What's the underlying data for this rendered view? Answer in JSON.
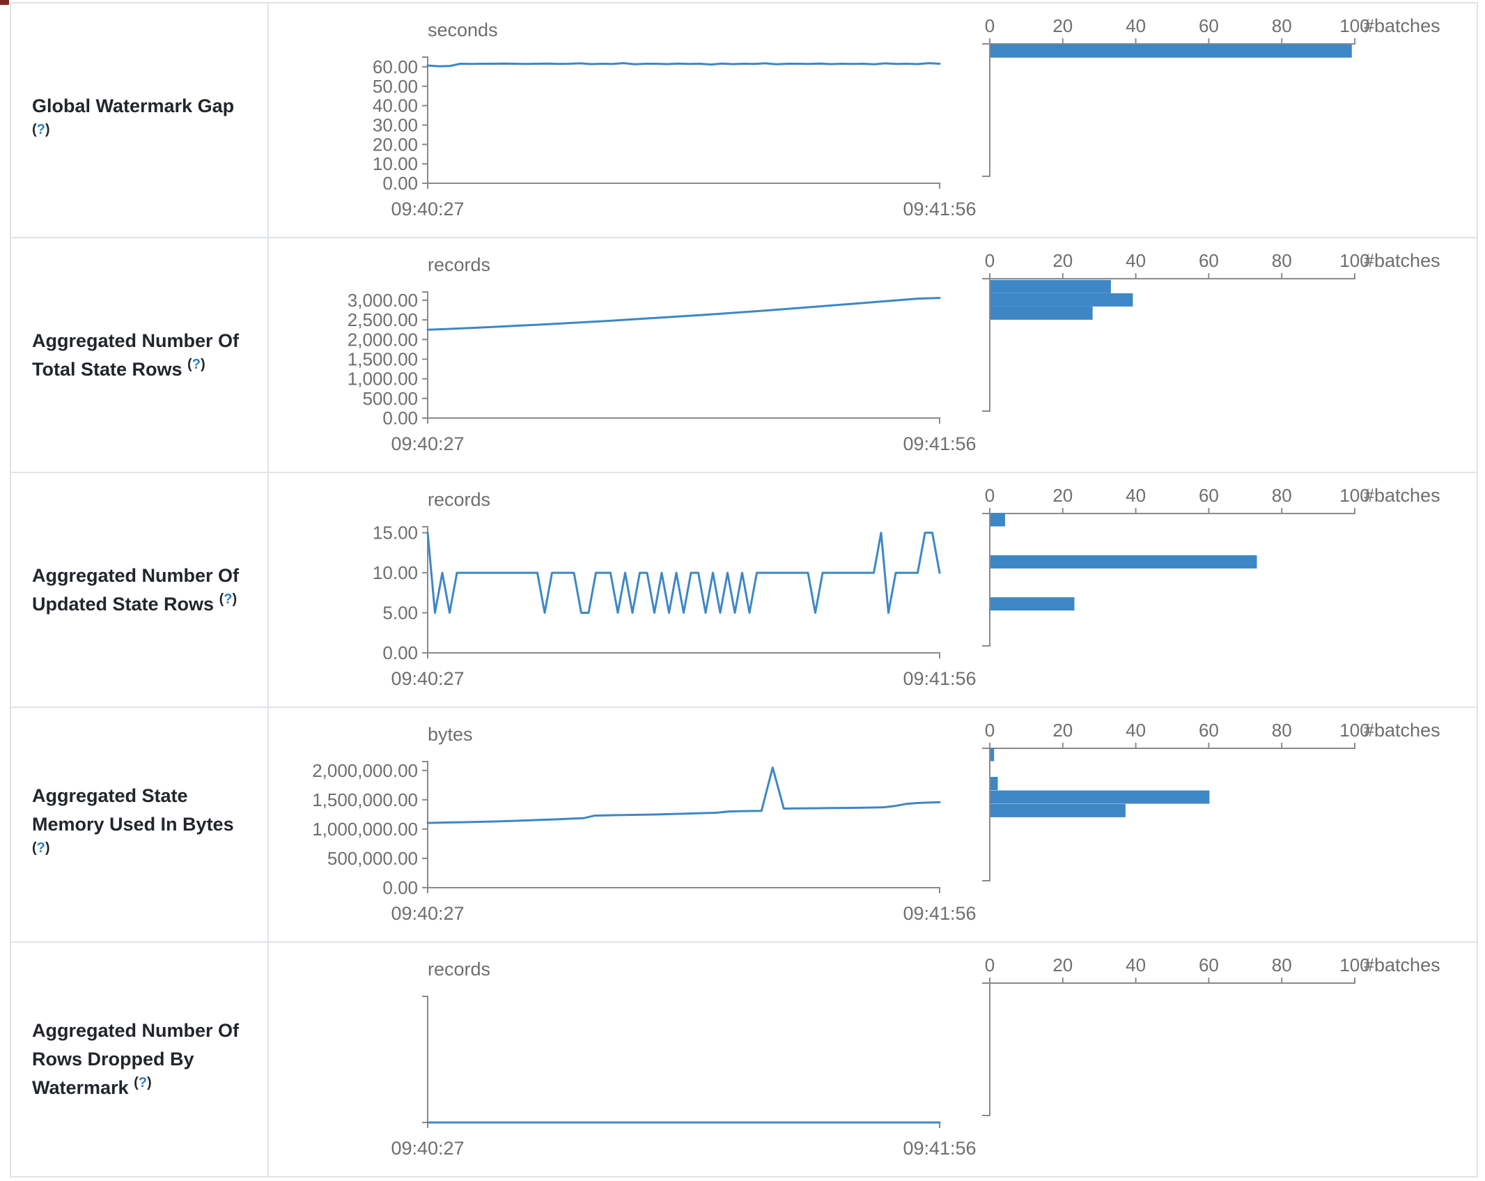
{
  "colors": {
    "accent_blue": "#3d87c6",
    "axis_gray": "#8a8a8a",
    "tick_text_gray": "#6e6e6e",
    "label_dark": "#22262b",
    "help_blue": "#2f7dbe",
    "border_gray": "#dfe3e8"
  },
  "help": {
    "open": "(",
    "q": "?",
    "close": ")"
  },
  "axis": {
    "start": "09:40:27",
    "end": "09:41:56",
    "batches": "#batches",
    "batch_ticks": [
      "0",
      "20",
      "40",
      "60",
      "80",
      "100"
    ],
    "batch_tick_values": [
      0,
      20,
      40,
      60,
      80,
      100
    ]
  },
  "rows": [
    {
      "id": "global-watermark-gap",
      "label": "Global Watermark Gap",
      "unit": "seconds",
      "type": "line+histogram",
      "y_ticks": [
        {
          "v": 60,
          "t": "60.00"
        },
        {
          "v": 50,
          "t": "50.00"
        },
        {
          "v": 40,
          "t": "40.00"
        },
        {
          "v": 30,
          "t": "30.00"
        },
        {
          "v": 20,
          "t": "20.00"
        },
        {
          "v": 10,
          "t": "10.00"
        },
        {
          "v": 0,
          "t": "0.00"
        }
      ],
      "series": [
        60.7,
        60.3,
        60.4,
        61.6,
        61.5,
        61.6,
        61.6,
        61.7,
        61.6,
        61.5,
        61.6,
        61.7,
        61.5,
        61.6,
        61.8,
        61.4,
        61.6,
        61.5,
        61.9,
        61.3,
        61.6,
        61.6,
        61.4,
        61.7,
        61.5,
        61.6,
        61.2,
        61.7,
        61.4,
        61.6,
        61.5,
        61.8,
        61.3,
        61.6,
        61.6,
        61.5,
        61.7,
        61.4,
        61.6,
        61.5,
        61.6,
        61.3,
        61.8,
        61.5,
        61.6,
        61.4,
        61.9,
        61.6
      ],
      "histogram": [
        {
          "v": 61.5,
          "count": 99
        }
      ]
    },
    {
      "id": "aggregated-number-of-total-state-rows",
      "label": "Aggregated Number Of Total State Rows",
      "unit": "records",
      "type": "line+histogram",
      "y_ticks": [
        {
          "v": 3000,
          "t": "3,000.00"
        },
        {
          "v": 2500,
          "t": "2,500.00"
        },
        {
          "v": 2000,
          "t": "2,000.00"
        },
        {
          "v": 1500,
          "t": "1,500.00"
        },
        {
          "v": 1000,
          "t": "1,000.00"
        },
        {
          "v": 500,
          "t": "500.00"
        },
        {
          "v": 0,
          "t": "0.00"
        }
      ],
      "series": [
        2248,
        2270,
        2295,
        2322,
        2350,
        2378,
        2408,
        2440,
        2472,
        2505,
        2540,
        2575,
        2612,
        2650,
        2690,
        2730,
        2772,
        2815,
        2860,
        2905,
        2950,
        2995,
        3040,
        3058
      ],
      "histogram": [
        {
          "v": 3020,
          "count": 33
        },
        {
          "v": 2698,
          "count": 39
        },
        {
          "v": 2376,
          "count": 28
        }
      ]
    },
    {
      "id": "aggregated-number-of-updated-state-rows",
      "label": "Aggregated Number Of Updated State Rows",
      "unit": "records",
      "type": "line+histogram",
      "y_ticks": [
        {
          "v": 15,
          "t": "15.00"
        },
        {
          "v": 10,
          "t": "10.00"
        },
        {
          "v": 5,
          "t": "5.00"
        },
        {
          "v": 0,
          "t": "0.00"
        }
      ],
      "series": [
        15,
        5,
        10,
        5,
        10,
        10,
        10,
        10,
        10,
        10,
        10,
        10,
        10,
        10,
        10,
        10,
        5,
        10,
        10,
        10,
        10,
        5,
        5,
        10,
        10,
        10,
        5,
        10,
        5,
        10,
        10,
        5,
        10,
        5,
        10,
        5,
        10,
        10,
        5,
        10,
        5,
        10,
        5,
        10,
        5,
        10,
        10,
        10,
        10,
        10,
        10,
        10,
        10,
        5,
        10,
        10,
        10,
        10,
        10,
        10,
        10,
        10,
        15,
        5,
        10,
        10,
        10,
        10,
        15,
        15,
        10
      ],
      "histogram": [
        {
          "v": 15,
          "count": 4
        },
        {
          "v": 10,
          "count": 73
        },
        {
          "v": 5,
          "count": 23
        }
      ]
    },
    {
      "id": "aggregated-state-memory-used-in-bytes",
      "label": "Aggregated State Memory Used In Bytes",
      "unit": "bytes",
      "type": "line+histogram",
      "y_ticks": [
        {
          "v": 2000000,
          "t": "2,000,000.00"
        },
        {
          "v": 1500000,
          "t": "1,500,000.00"
        },
        {
          "v": 1000000,
          "t": "1,000,000.00"
        },
        {
          "v": 500000,
          "t": "500,000.00"
        },
        {
          "v": 0,
          "t": "0.00"
        }
      ],
      "series": [
        1105000,
        1110000,
        1113000,
        1117000,
        1121000,
        1125000,
        1130000,
        1136000,
        1142000,
        1149000,
        1156000,
        1163000,
        1170000,
        1178000,
        1186000,
        1230000,
        1235000,
        1238000,
        1241000,
        1244000,
        1248000,
        1252000,
        1257000,
        1262000,
        1268000,
        1274000,
        1280000,
        1300000,
        1304000,
        1308000,
        1312000,
        2050000,
        1350000,
        1352000,
        1354000,
        1356000,
        1358000,
        1360000,
        1362000,
        1365000,
        1368000,
        1372000,
        1395000,
        1430000,
        1445000,
        1452000,
        1458000
      ],
      "histogram": [
        {
          "v": 2050000,
          "count": 1
        },
        {
          "v": 1580000,
          "count": 2
        },
        {
          "v": 1360000,
          "count": 60
        },
        {
          "v": 1140000,
          "count": 37
        }
      ]
    },
    {
      "id": "aggregated-number-of-rows-dropped-by-watermark",
      "label": "Aggregated Number Of Rows Dropped By Watermark",
      "unit": "records",
      "type": "line+histogram",
      "y_ticks": [],
      "series": [
        0,
        0,
        0,
        0,
        0,
        0,
        0,
        0,
        0,
        0
      ],
      "histogram": []
    }
  ]
}
